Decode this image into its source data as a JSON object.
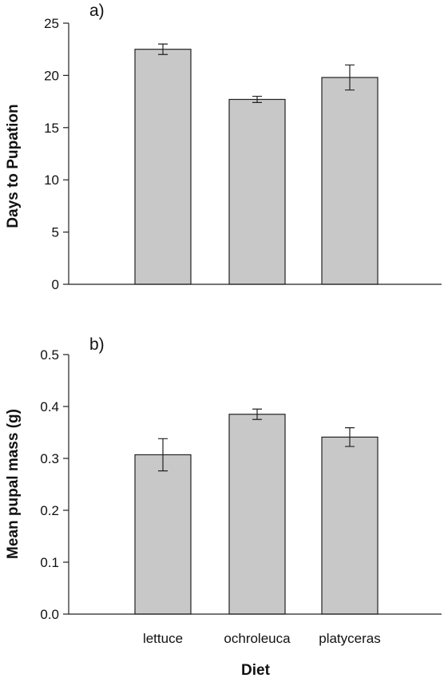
{
  "chart_data": [
    {
      "type": "bar",
      "panel_label": "a)",
      "categories": [
        "lettuce",
        "ochroleuca",
        "platyceras"
      ],
      "values": [
        22.5,
        17.7,
        19.8
      ],
      "errors": [
        0.5,
        0.3,
        1.2
      ],
      "xlabel": "",
      "ylabel": "Days to Pupation",
      "ylim": [
        0,
        25
      ],
      "yticks": [
        0,
        5,
        10,
        15,
        20,
        25
      ],
      "ytick_labels": [
        "0",
        "5",
        "10",
        "15",
        "20",
        "25"
      ],
      "show_xtick_labels": false,
      "grid": false,
      "bar_color": "#c8c8c8"
    },
    {
      "type": "bar",
      "panel_label": "b)",
      "categories": [
        "lettuce",
        "ochroleuca",
        "platyceras"
      ],
      "values": [
        0.307,
        0.385,
        0.341
      ],
      "errors": [
        0.031,
        0.01,
        0.018
      ],
      "xlabel": "Diet",
      "ylabel": "Mean pupal mass (g)",
      "ylim": [
        0,
        0.5
      ],
      "yticks": [
        0,
        0.1,
        0.2,
        0.3,
        0.4,
        0.5
      ],
      "ytick_labels": [
        "0.0",
        "0.1",
        "0.2",
        "0.3",
        "0.4",
        "0.5"
      ],
      "show_xtick_labels": true,
      "grid": false,
      "bar_color": "#c8c8c8"
    }
  ]
}
